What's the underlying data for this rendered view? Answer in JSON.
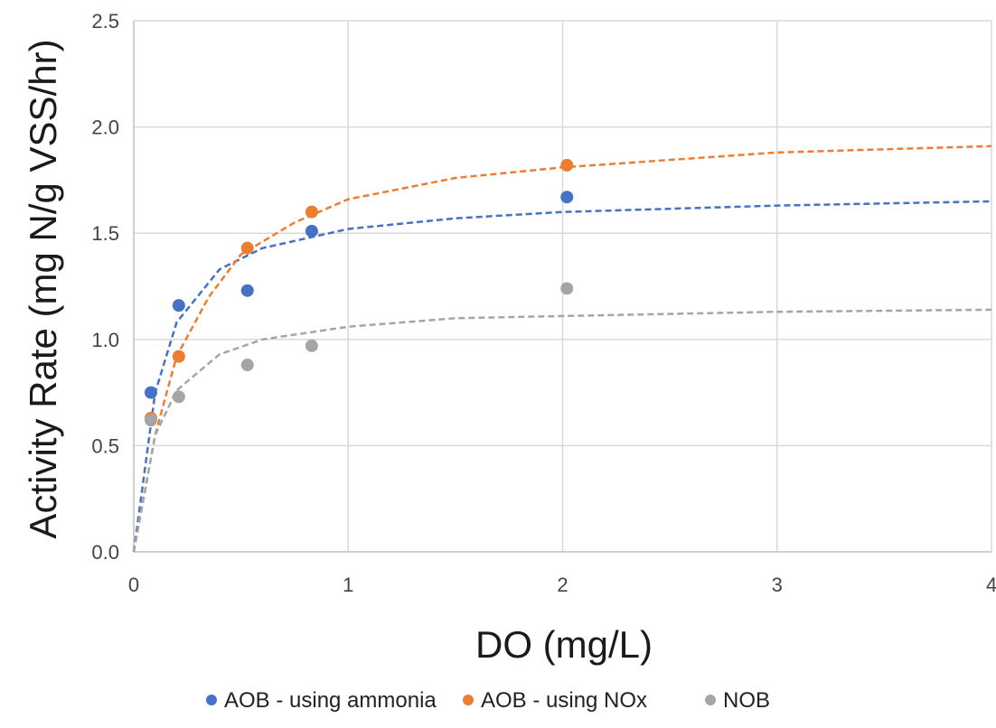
{
  "chart_data": {
    "type": "scatter",
    "title": "",
    "xlabel": "DO (mg/L)",
    "ylabel": "Activity Rate (mg N/g VSS/hr)",
    "xlim": [
      0,
      4
    ],
    "ylim": [
      0,
      2.5
    ],
    "x_ticks": [
      "0",
      "1",
      "2",
      "3",
      "4"
    ],
    "y_ticks": [
      "0.0",
      "0.5",
      "1.0",
      "1.5",
      "2.0",
      "2.5"
    ],
    "grid": true,
    "legend_position": "bottom",
    "series": [
      {
        "name": "AOB - using ammonia",
        "color": "#4472C4",
        "points": [
          [
            0.08,
            0.75
          ],
          [
            0.21,
            1.16
          ],
          [
            0.53,
            1.23
          ],
          [
            0.83,
            1.51
          ],
          [
            2.02,
            1.67
          ]
        ],
        "trendline": [
          [
            0,
            0
          ],
          [
            0.1,
            0.75
          ],
          [
            0.2,
            1.08
          ],
          [
            0.4,
            1.33
          ],
          [
            0.6,
            1.43
          ],
          [
            1.0,
            1.52
          ],
          [
            1.5,
            1.57
          ],
          [
            2.0,
            1.6
          ],
          [
            3.0,
            1.63
          ],
          [
            4.0,
            1.65
          ]
        ]
      },
      {
        "name": "AOB - using NOx",
        "color": "#ED7D31",
        "points": [
          [
            0.08,
            0.63
          ],
          [
            0.21,
            0.92
          ],
          [
            0.53,
            1.43
          ],
          [
            0.83,
            1.6
          ],
          [
            2.02,
            1.82
          ]
        ],
        "trendline": [
          [
            0,
            0
          ],
          [
            0.1,
            0.55
          ],
          [
            0.2,
            0.92
          ],
          [
            0.35,
            1.2
          ],
          [
            0.5,
            1.4
          ],
          [
            0.75,
            1.55
          ],
          [
            1.0,
            1.66
          ],
          [
            1.5,
            1.76
          ],
          [
            2.0,
            1.81
          ],
          [
            3.0,
            1.88
          ],
          [
            4.0,
            1.91
          ]
        ]
      },
      {
        "name": "NOB",
        "color": "#A5A5A5",
        "points": [
          [
            0.08,
            0.62
          ],
          [
            0.21,
            0.73
          ],
          [
            0.53,
            0.88
          ],
          [
            0.83,
            0.97
          ],
          [
            2.02,
            1.24
          ]
        ],
        "trendline": [
          [
            0,
            0
          ],
          [
            0.1,
            0.55
          ],
          [
            0.2,
            0.76
          ],
          [
            0.4,
            0.93
          ],
          [
            0.6,
            1.0
          ],
          [
            1.0,
            1.06
          ],
          [
            1.5,
            1.1
          ],
          [
            2.0,
            1.11
          ],
          [
            3.0,
            1.13
          ],
          [
            4.0,
            1.14
          ]
        ]
      }
    ]
  }
}
